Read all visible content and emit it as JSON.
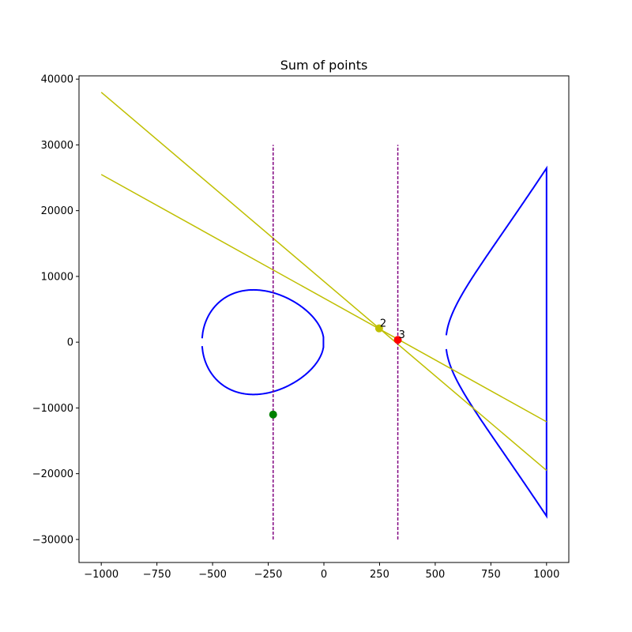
{
  "chart_data": {
    "type": "line",
    "title": "Sum of points",
    "xlabel": "",
    "ylabel": "",
    "xlim": [
      -1100,
      1100
    ],
    "ylim": [
      -33500,
      40500
    ],
    "x_ticks": [
      -1000,
      -750,
      -500,
      -250,
      0,
      250,
      500,
      750,
      1000
    ],
    "x_tick_labels": [
      "−1000",
      "−750",
      "−500",
      "−250",
      "0",
      "250",
      "500",
      "750",
      "1000"
    ],
    "y_ticks": [
      -30000,
      -20000,
      -10000,
      0,
      10000,
      20000,
      30000,
      40000
    ],
    "y_tick_labels": [
      "−30000",
      "−20000",
      "−10000",
      "0",
      "10000",
      "20000",
      "30000",
      "40000"
    ],
    "grid": false,
    "curve": {
      "color": "#0000ff",
      "a": -300000,
      "b": 0,
      "x_root": -632,
      "x_max": 1000
    },
    "lines": [
      {
        "x": [
          -1000,
          1000
        ],
        "y": [
          38000,
          -19500
        ],
        "color": "#bfbf00"
      },
      {
        "x": [
          -1000,
          1000
        ],
        "y": [
          25500,
          -12100
        ],
        "color": "#bfbf00"
      }
    ],
    "vlines": [
      {
        "x": -228,
        "y": [
          -30000,
          30000
        ],
        "color": "#800080"
      },
      {
        "x": 332,
        "y": [
          -30000,
          30000
        ],
        "color": "#800080"
      }
    ],
    "points": [
      {
        "x": 248,
        "y": 2100,
        "color": "#bfbf00"
      },
      {
        "x": 332,
        "y": 350,
        "color": "#ff0000"
      },
      {
        "x": -228,
        "y": -11000,
        "color": "#008000"
      }
    ],
    "annotations": [
      {
        "text": "2",
        "x": 248,
        "y": 2100
      },
      {
        "text": "3",
        "x": 332,
        "y": 350
      }
    ]
  }
}
